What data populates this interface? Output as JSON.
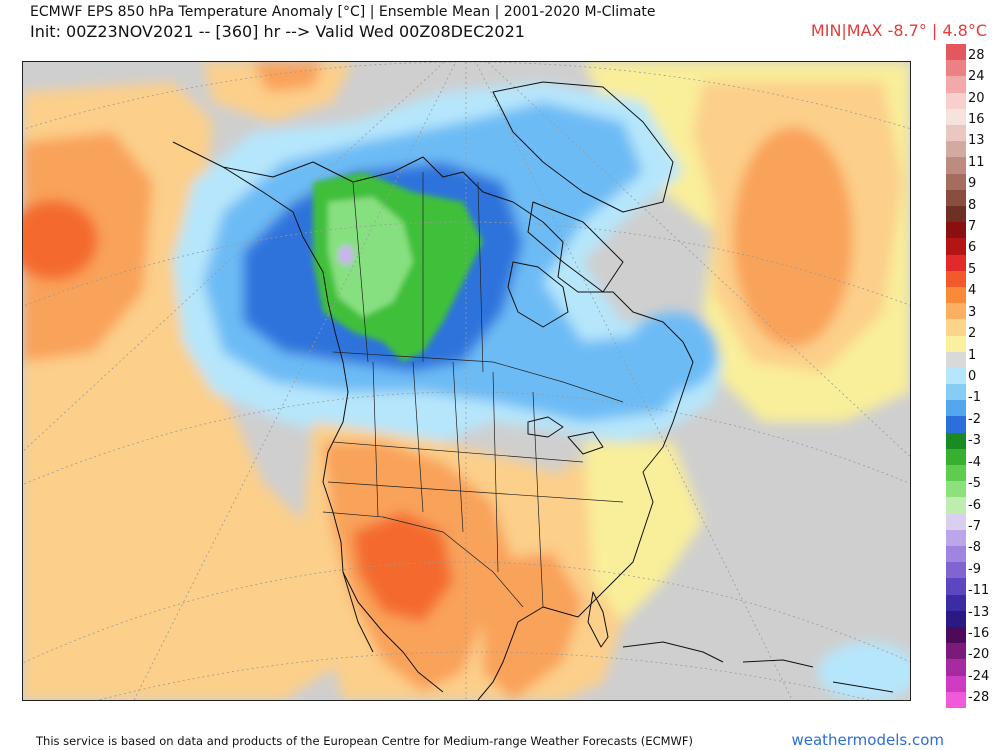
{
  "header": {
    "title": "ECMWF EPS 850 hPa Temperature Anomaly [°C] | Ensemble Mean | 2001-2020 M-Climate",
    "init_line": "Init: 00Z23NOV2021 -- [360] hr --> Valid Wed 00Z08DEC2021",
    "minmax": "MIN|MAX -8.7° | 4.8°C"
  },
  "map": {
    "region": "North America",
    "anomaly_colors": {
      "warm_strong": "#f46a2e",
      "warm": "#f9a25a",
      "warm_light": "#fccf8a",
      "near_zero": "#f9ee9a",
      "neutral": "#cfcfcf",
      "cool_light": "#b6e6fb",
      "cool": "#6dbbf5",
      "cool_strong": "#2f73dc",
      "green": "#3fbf3a",
      "green_light": "#87e07f",
      "lavender": "#c8b4ec"
    }
  },
  "scale": {
    "labels": [
      "28",
      "24",
      "20",
      "16",
      "13",
      "11",
      "9",
      "8",
      "7",
      "6",
      "5",
      "4",
      "3",
      "2",
      "1",
      "0",
      "-1",
      "-2",
      "-3",
      "-4",
      "-5",
      "-6",
      "-7",
      "-8",
      "-9",
      "-11",
      "-13",
      "-16",
      "-20",
      "-24",
      "-28"
    ],
    "colors": [
      "#e4575f",
      "#ec8184",
      "#f3a9a9",
      "#f8cfcd",
      "#f7e3de",
      "#e8c8c0",
      "#d2aaa0",
      "#bd8c80",
      "#a66c60",
      "#8a4e40",
      "#6e3025",
      "#8a1010",
      "#b51414",
      "#e22a2a",
      "#f25a2b",
      "#f98a3a",
      "#fbb061",
      "#fdd58a",
      "#fbf0a0",
      "#d9d9d9",
      "#b6e6fb",
      "#86cdf6",
      "#54a7ee",
      "#2c6edc",
      "#1a8a22",
      "#37b02f",
      "#5ecd4f",
      "#8ee07d",
      "#bdeeb0",
      "#d9d0f0",
      "#bba6ea",
      "#9f85df",
      "#7f64d2",
      "#5c46c2",
      "#3b2ca4",
      "#2a1a82",
      "#4d0a5a",
      "#7a1a7a",
      "#a62aa0",
      "#d03bc4",
      "#f05ad8"
    ]
  },
  "footer": {
    "credit": "This service is based on data and products of the European Centre for Medium-range Weather Forecasts (ECMWF)",
    "site": "weathermodels.com"
  }
}
